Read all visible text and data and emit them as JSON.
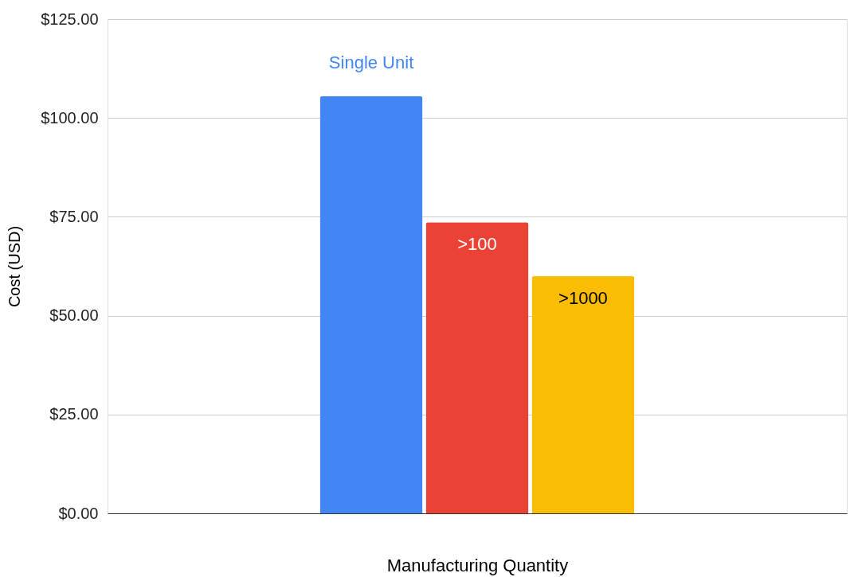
{
  "chart_data": {
    "type": "bar",
    "xlabel": "Manufacturing Quantity",
    "ylabel": "Cost (USD)",
    "categories": [
      null
    ],
    "series": [
      {
        "name": "Single Unit",
        "color": "#4285f4",
        "values": [
          105.5
        ]
      },
      {
        "name": ">100",
        "color": "#ea4335",
        "values": [
          73.6
        ]
      },
      {
        "name": ">1000",
        "color": "#fbbc04",
        "values": [
          60.0
        ]
      }
    ],
    "ylim": [
      0,
      125
    ],
    "yticks": [
      {
        "value": 0,
        "label": "$0.00"
      },
      {
        "value": 25,
        "label": "$25.00"
      },
      {
        "value": 50,
        "label": "$50.00"
      },
      {
        "value": 75,
        "label": "$75.00"
      },
      {
        "value": 100,
        "label": "$100.00"
      },
      {
        "value": 125,
        "label": "$125.00"
      }
    ],
    "grid": "y",
    "tick_labels": "y"
  }
}
